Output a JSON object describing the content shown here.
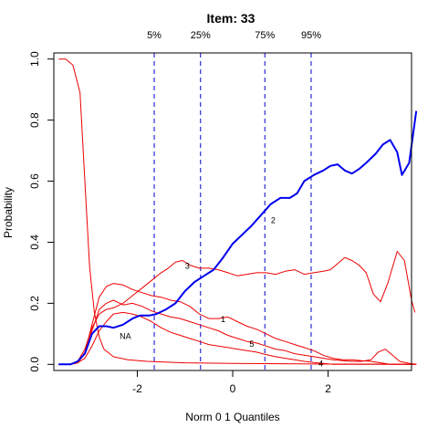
{
  "chart_data": {
    "type": "line",
    "title": "Item:  33",
    "xlabel": "Norm 0 1 Quantiles",
    "ylabel": "Probability",
    "xlim": [
      -3.75,
      3.75
    ],
    "ylim": [
      -0.02,
      1.02
    ],
    "xticks": [
      -2,
      0,
      2
    ],
    "yticks": [
      0.0,
      0.2,
      0.4,
      0.6,
      0.8,
      1.0
    ],
    "quantile_lines": [
      {
        "label": "5%",
        "x": -1.645
      },
      {
        "label": "25%",
        "x": -0.674
      },
      {
        "label": "75%",
        "x": 0.674
      },
      {
        "label": "95%",
        "x": 1.645
      }
    ],
    "colors": {
      "correct": "#0000ee",
      "distractor": "#ee0000",
      "quantile": "#0000cc"
    },
    "series": [
      {
        "name": "2",
        "correct": true,
        "label_at": [
          0.85,
          0.47
        ],
        "points": [
          [
            -3.65,
            0.0
          ],
          [
            -3.4,
            0.0
          ],
          [
            -3.25,
            0.01
          ],
          [
            -3.1,
            0.035
          ],
          [
            -2.95,
            0.1
          ],
          [
            -2.8,
            0.125
          ],
          [
            -2.65,
            0.125
          ],
          [
            -2.5,
            0.12
          ],
          [
            -2.3,
            0.13
          ],
          [
            -2.1,
            0.15
          ],
          [
            -1.95,
            0.16
          ],
          [
            -1.75,
            0.16
          ],
          [
            -1.6,
            0.165
          ],
          [
            -1.4,
            0.18
          ],
          [
            -1.2,
            0.2
          ],
          [
            -1.0,
            0.24
          ],
          [
            -0.8,
            0.27
          ],
          [
            -0.6,
            0.29
          ],
          [
            -0.4,
            0.31
          ],
          [
            -0.2,
            0.35
          ],
          [
            0.0,
            0.395
          ],
          [
            0.2,
            0.425
          ],
          [
            0.4,
            0.455
          ],
          [
            0.6,
            0.49
          ],
          [
            0.8,
            0.525
          ],
          [
            1.0,
            0.545
          ],
          [
            1.2,
            0.545
          ],
          [
            1.35,
            0.56
          ],
          [
            1.5,
            0.6
          ],
          [
            1.7,
            0.62
          ],
          [
            1.9,
            0.635
          ],
          [
            2.05,
            0.65
          ],
          [
            2.2,
            0.655
          ],
          [
            2.35,
            0.635
          ],
          [
            2.5,
            0.625
          ],
          [
            2.65,
            0.64
          ],
          [
            2.8,
            0.66
          ],
          [
            3.0,
            0.69
          ],
          [
            3.15,
            0.72
          ],
          [
            3.3,
            0.735
          ],
          [
            3.45,
            0.695
          ],
          [
            3.55,
            0.62
          ],
          [
            3.7,
            0.66
          ],
          [
            3.85,
            0.83
          ]
        ]
      },
      {
        "name": "NA",
        "label_at": [
          -2.25,
          0.09
        ],
        "points": [
          [
            -3.65,
            1.0
          ],
          [
            -3.5,
            1.0
          ],
          [
            -3.35,
            0.98
          ],
          [
            -3.2,
            0.89
          ],
          [
            -3.1,
            0.6
          ],
          [
            -3.0,
            0.32
          ],
          [
            -2.9,
            0.17
          ],
          [
            -2.8,
            0.09
          ],
          [
            -2.7,
            0.05
          ],
          [
            -2.5,
            0.025
          ],
          [
            -2.2,
            0.015
          ],
          [
            -1.8,
            0.01
          ],
          [
            -1.0,
            0.005
          ],
          [
            0.0,
            0.003
          ],
          [
            1.0,
            0.002
          ],
          [
            2.0,
            0.001
          ],
          [
            3.0,
            0.001
          ],
          [
            3.85,
            0.0
          ]
        ]
      },
      {
        "name": "3",
        "label_at": [
          -0.95,
          0.32
        ],
        "points": [
          [
            -3.65,
            0.0
          ],
          [
            -3.4,
            0.0
          ],
          [
            -3.25,
            0.01
          ],
          [
            -3.1,
            0.05
          ],
          [
            -2.95,
            0.12
          ],
          [
            -2.8,
            0.165
          ],
          [
            -2.65,
            0.18
          ],
          [
            -2.5,
            0.185
          ],
          [
            -2.3,
            0.2
          ],
          [
            -2.1,
            0.225
          ],
          [
            -1.9,
            0.25
          ],
          [
            -1.7,
            0.275
          ],
          [
            -1.5,
            0.3
          ],
          [
            -1.35,
            0.315
          ],
          [
            -1.2,
            0.335
          ],
          [
            -1.05,
            0.34
          ],
          [
            -0.9,
            0.325
          ],
          [
            -0.7,
            0.315
          ],
          [
            -0.5,
            0.315
          ],
          [
            -0.3,
            0.31
          ],
          [
            -0.1,
            0.3
          ],
          [
            0.1,
            0.29
          ],
          [
            0.3,
            0.295
          ],
          [
            0.5,
            0.3
          ],
          [
            0.7,
            0.3
          ],
          [
            0.9,
            0.295
          ],
          [
            1.1,
            0.305
          ],
          [
            1.3,
            0.31
          ],
          [
            1.5,
            0.295
          ],
          [
            1.7,
            0.3
          ],
          [
            1.9,
            0.305
          ],
          [
            2.05,
            0.31
          ],
          [
            2.2,
            0.33
          ],
          [
            2.35,
            0.35
          ],
          [
            2.5,
            0.34
          ],
          [
            2.65,
            0.325
          ],
          [
            2.8,
            0.3
          ],
          [
            2.95,
            0.23
          ],
          [
            3.1,
            0.205
          ],
          [
            3.25,
            0.265
          ],
          [
            3.45,
            0.37
          ],
          [
            3.6,
            0.34
          ],
          [
            3.75,
            0.21
          ],
          [
            3.82,
            0.17
          ]
        ]
      },
      {
        "name": "1",
        "label_at": [
          -0.2,
          0.145
        ],
        "points": [
          [
            -3.65,
            0.0
          ],
          [
            -3.4,
            0.0
          ],
          [
            -3.25,
            0.005
          ],
          [
            -3.1,
            0.035
          ],
          [
            -2.95,
            0.11
          ],
          [
            -2.8,
            0.18
          ],
          [
            -2.65,
            0.2
          ],
          [
            -2.5,
            0.21
          ],
          [
            -2.3,
            0.195
          ],
          [
            -2.1,
            0.2
          ],
          [
            -1.9,
            0.19
          ],
          [
            -1.7,
            0.175
          ],
          [
            -1.5,
            0.165
          ],
          [
            -1.3,
            0.155
          ],
          [
            -1.1,
            0.15
          ],
          [
            -0.9,
            0.14
          ],
          [
            -0.7,
            0.13
          ],
          [
            -0.5,
            0.12
          ],
          [
            -0.3,
            0.11
          ],
          [
            -0.1,
            0.095
          ],
          [
            0.1,
            0.085
          ],
          [
            0.3,
            0.075
          ],
          [
            0.5,
            0.07
          ],
          [
            0.7,
            0.06
          ],
          [
            0.9,
            0.05
          ],
          [
            1.1,
            0.045
          ],
          [
            1.3,
            0.035
          ],
          [
            1.5,
            0.03
          ],
          [
            1.7,
            0.025
          ],
          [
            1.9,
            0.02
          ],
          [
            2.1,
            0.015
          ],
          [
            2.3,
            0.012
          ],
          [
            2.5,
            0.01
          ],
          [
            2.7,
            0.01
          ],
          [
            2.9,
            0.015
          ],
          [
            3.05,
            0.04
          ],
          [
            3.2,
            0.05
          ],
          [
            3.35,
            0.03
          ],
          [
            3.5,
            0.01
          ],
          [
            3.7,
            0.003
          ],
          [
            3.85,
            0.0
          ]
        ]
      },
      {
        "name": "5",
        "label_at": [
          0.4,
          0.065
        ],
        "points": [
          [
            -3.65,
            0.0
          ],
          [
            -3.4,
            0.0
          ],
          [
            -3.25,
            0.005
          ],
          [
            -3.1,
            0.04
          ],
          [
            -2.95,
            0.13
          ],
          [
            -2.8,
            0.22
          ],
          [
            -2.65,
            0.255
          ],
          [
            -2.5,
            0.265
          ],
          [
            -2.3,
            0.26
          ],
          [
            -2.1,
            0.245
          ],
          [
            -1.9,
            0.235
          ],
          [
            -1.7,
            0.225
          ],
          [
            -1.5,
            0.22
          ],
          [
            -1.3,
            0.21
          ],
          [
            -1.1,
            0.205
          ],
          [
            -0.9,
            0.19
          ],
          [
            -0.7,
            0.165
          ],
          [
            -0.5,
            0.15
          ],
          [
            -0.3,
            0.15
          ],
          [
            -0.1,
            0.155
          ],
          [
            0.1,
            0.14
          ],
          [
            0.3,
            0.125
          ],
          [
            0.5,
            0.115
          ],
          [
            0.7,
            0.1
          ],
          [
            0.9,
            0.085
          ],
          [
            1.1,
            0.075
          ],
          [
            1.3,
            0.065
          ],
          [
            1.5,
            0.055
          ],
          [
            1.7,
            0.045
          ],
          [
            1.9,
            0.03
          ],
          [
            2.1,
            0.02
          ],
          [
            2.3,
            0.015
          ],
          [
            2.5,
            0.015
          ],
          [
            2.7,
            0.012
          ],
          [
            2.9,
            0.01
          ],
          [
            3.1,
            0.005
          ],
          [
            3.3,
            0.0
          ],
          [
            3.85,
            0.0
          ]
        ]
      },
      {
        "name": "4",
        "label_at": [
          1.85,
          0.0
        ],
        "points": [
          [
            -3.65,
            0.0
          ],
          [
            -3.4,
            0.0
          ],
          [
            -3.25,
            0.005
          ],
          [
            -3.1,
            0.02
          ],
          [
            -2.95,
            0.06
          ],
          [
            -2.8,
            0.11
          ],
          [
            -2.65,
            0.14
          ],
          [
            -2.5,
            0.165
          ],
          [
            -2.3,
            0.17
          ],
          [
            -2.1,
            0.165
          ],
          [
            -1.9,
            0.155
          ],
          [
            -1.7,
            0.14
          ],
          [
            -1.5,
            0.12
          ],
          [
            -1.3,
            0.105
          ],
          [
            -1.1,
            0.095
          ],
          [
            -0.9,
            0.085
          ],
          [
            -0.7,
            0.075
          ],
          [
            -0.5,
            0.065
          ],
          [
            -0.3,
            0.06
          ],
          [
            -0.1,
            0.055
          ],
          [
            0.1,
            0.05
          ],
          [
            0.3,
            0.045
          ],
          [
            0.5,
            0.04
          ],
          [
            0.7,
            0.032
          ],
          [
            0.9,
            0.025
          ],
          [
            1.1,
            0.02
          ],
          [
            1.3,
            0.015
          ],
          [
            1.5,
            0.01
          ],
          [
            1.7,
            0.006
          ],
          [
            1.9,
            0.003
          ],
          [
            2.1,
            0.0
          ],
          [
            3.85,
            0.0
          ]
        ]
      }
    ]
  }
}
